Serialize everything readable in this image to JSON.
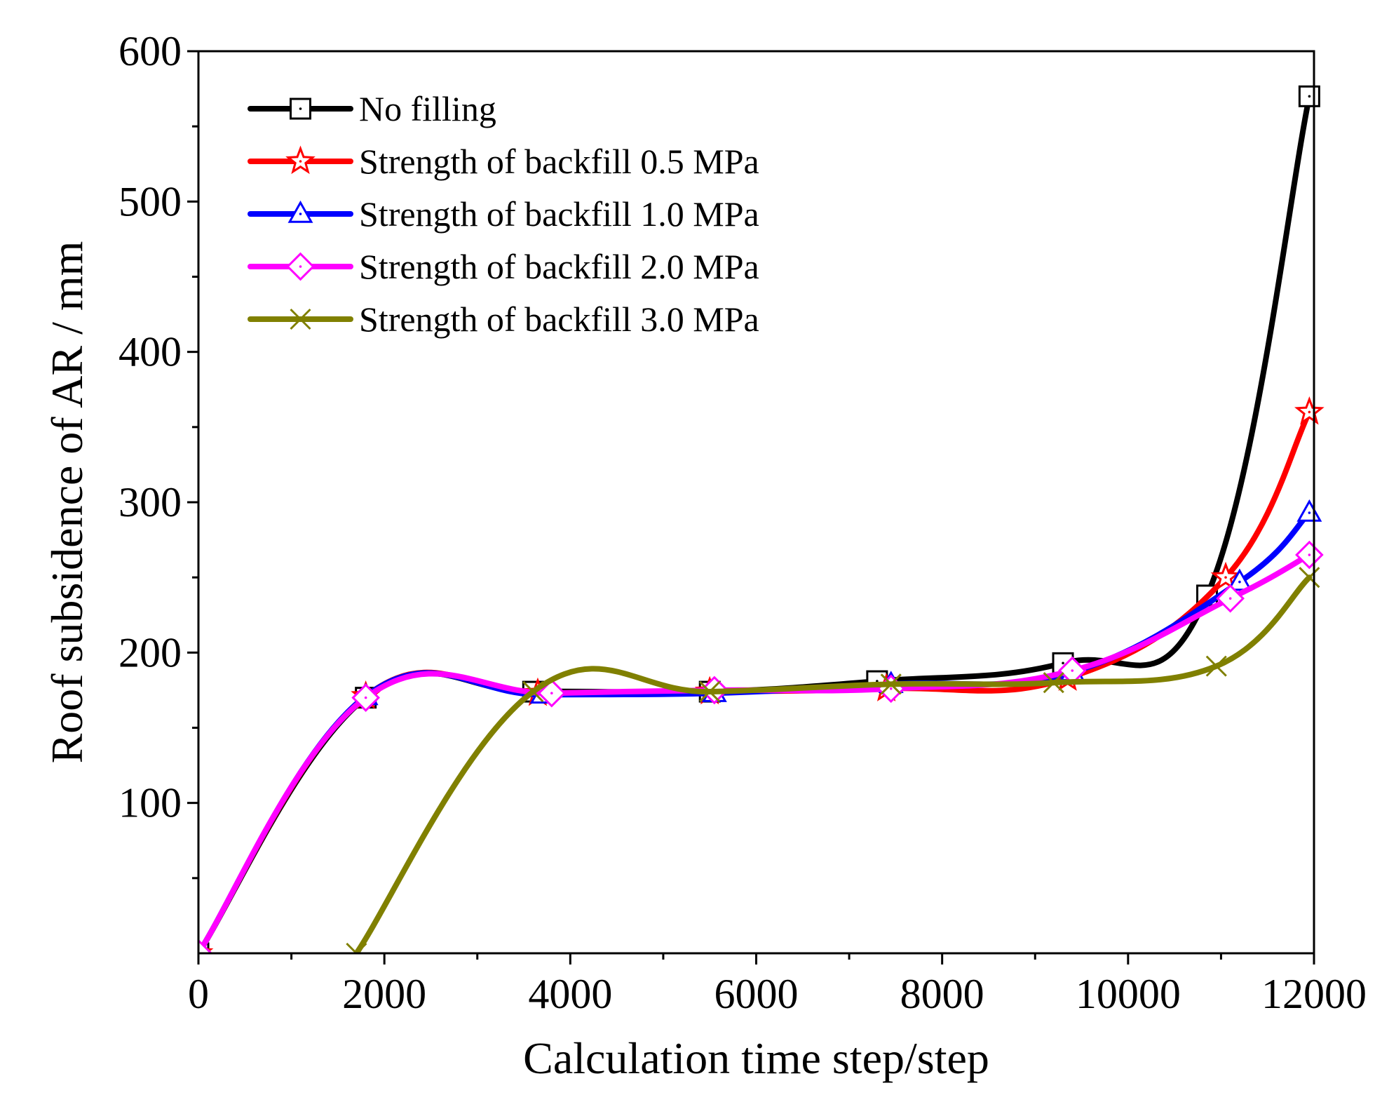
{
  "chart_data": {
    "type": "line",
    "title": "",
    "xlabel": "Calculation time step/step",
    "ylabel": "Roof subsidence of AR / mm",
    "xlim": [
      0,
      12000
    ],
    "ylim": [
      0,
      600
    ],
    "xticks": [
      0,
      2000,
      4000,
      6000,
      8000,
      10000,
      12000
    ],
    "xtick_labels": [
      "0",
      "2000",
      "4000",
      "6000",
      "8000",
      "10000",
      "12000"
    ],
    "yticks": [
      100,
      200,
      300,
      400,
      500,
      600
    ],
    "ytick_labels": [
      "100",
      "200",
      "300",
      "400",
      "500",
      "600"
    ],
    "grid": false,
    "legend_position": "top-left",
    "series": [
      {
        "name": "No filling",
        "color": "#000000",
        "marker": "square",
        "x": [
          0,
          1800,
          3600,
          5500,
          7300,
          9300,
          10850,
          11950
        ],
        "y": [
          0,
          170,
          174,
          174,
          181,
          193,
          238,
          570
        ]
      },
      {
        "name": "Strength of backfill 0.5 MPa",
        "color": "#ff0000",
        "marker": "star",
        "x": [
          0,
          1800,
          3650,
          5500,
          7400,
          9350,
          11050,
          11950
        ],
        "y": [
          0,
          171,
          173,
          174,
          176,
          183,
          250,
          360
        ]
      },
      {
        "name": "Strength of backfill 1.0 MPa",
        "color": "#0000ff",
        "marker": "triangle",
        "x": [
          0,
          1800,
          3700,
          5550,
          7450,
          9400,
          11200,
          11950
        ],
        "y": [
          0,
          171,
          172,
          173,
          179,
          187,
          247,
          293
        ]
      },
      {
        "name": "Strength of backfill 2.0 MPa",
        "color": "#ff00ff",
        "marker": "diamond",
        "x": [
          0,
          1800,
          3800,
          5550,
          7450,
          9400,
          11100,
          11950
        ],
        "y": [
          0,
          170,
          173,
          175,
          176,
          188,
          236,
          265
        ]
      },
      {
        "name": "Strength of backfill 3.0 MPa",
        "color": "#808000",
        "marker": "x",
        "x": [
          1700,
          3600,
          5500,
          7450,
          9200,
          10950,
          11950
        ],
        "y": [
          0,
          174,
          174,
          179,
          180,
          191,
          250
        ]
      }
    ]
  }
}
